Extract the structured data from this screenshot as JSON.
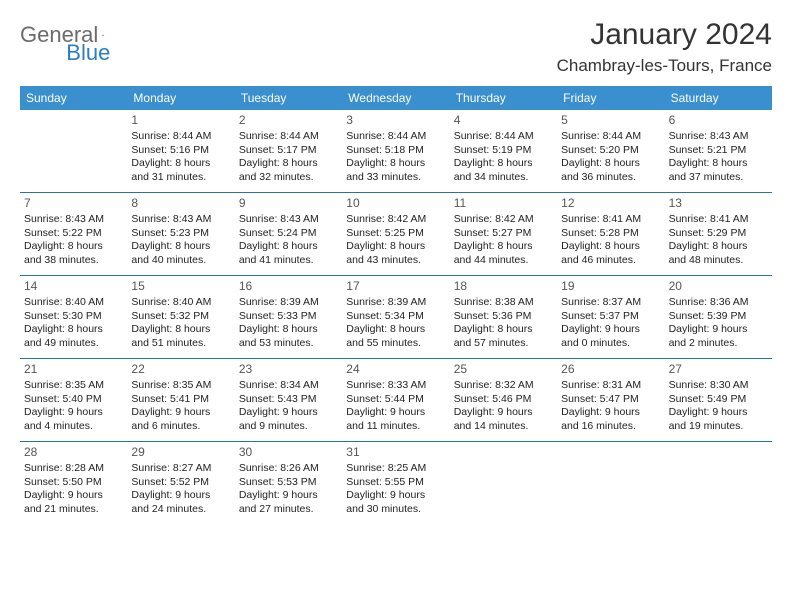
{
  "brand": {
    "part1": "General",
    "part2": "Blue"
  },
  "title": "January 2024",
  "location": "Chambray-les-Tours, France",
  "colors": {
    "header_bg": "#3a8fce",
    "brand_gray": "#6b6b6b",
    "brand_blue": "#2b7dc4",
    "week_border": "#2f6fa5"
  },
  "days_of_week": [
    "Sunday",
    "Monday",
    "Tuesday",
    "Wednesday",
    "Thursday",
    "Friday",
    "Saturday"
  ],
  "weeks": [
    [
      {
        "n": "",
        "sr": "",
        "ss": "",
        "d1": "",
        "d2": ""
      },
      {
        "n": "1",
        "sr": "Sunrise: 8:44 AM",
        "ss": "Sunset: 5:16 PM",
        "d1": "Daylight: 8 hours",
        "d2": "and 31 minutes."
      },
      {
        "n": "2",
        "sr": "Sunrise: 8:44 AM",
        "ss": "Sunset: 5:17 PM",
        "d1": "Daylight: 8 hours",
        "d2": "and 32 minutes."
      },
      {
        "n": "3",
        "sr": "Sunrise: 8:44 AM",
        "ss": "Sunset: 5:18 PM",
        "d1": "Daylight: 8 hours",
        "d2": "and 33 minutes."
      },
      {
        "n": "4",
        "sr": "Sunrise: 8:44 AM",
        "ss": "Sunset: 5:19 PM",
        "d1": "Daylight: 8 hours",
        "d2": "and 34 minutes."
      },
      {
        "n": "5",
        "sr": "Sunrise: 8:44 AM",
        "ss": "Sunset: 5:20 PM",
        "d1": "Daylight: 8 hours",
        "d2": "and 36 minutes."
      },
      {
        "n": "6",
        "sr": "Sunrise: 8:43 AM",
        "ss": "Sunset: 5:21 PM",
        "d1": "Daylight: 8 hours",
        "d2": "and 37 minutes."
      }
    ],
    [
      {
        "n": "7",
        "sr": "Sunrise: 8:43 AM",
        "ss": "Sunset: 5:22 PM",
        "d1": "Daylight: 8 hours",
        "d2": "and 38 minutes."
      },
      {
        "n": "8",
        "sr": "Sunrise: 8:43 AM",
        "ss": "Sunset: 5:23 PM",
        "d1": "Daylight: 8 hours",
        "d2": "and 40 minutes."
      },
      {
        "n": "9",
        "sr": "Sunrise: 8:43 AM",
        "ss": "Sunset: 5:24 PM",
        "d1": "Daylight: 8 hours",
        "d2": "and 41 minutes."
      },
      {
        "n": "10",
        "sr": "Sunrise: 8:42 AM",
        "ss": "Sunset: 5:25 PM",
        "d1": "Daylight: 8 hours",
        "d2": "and 43 minutes."
      },
      {
        "n": "11",
        "sr": "Sunrise: 8:42 AM",
        "ss": "Sunset: 5:27 PM",
        "d1": "Daylight: 8 hours",
        "d2": "and 44 minutes."
      },
      {
        "n": "12",
        "sr": "Sunrise: 8:41 AM",
        "ss": "Sunset: 5:28 PM",
        "d1": "Daylight: 8 hours",
        "d2": "and 46 minutes."
      },
      {
        "n": "13",
        "sr": "Sunrise: 8:41 AM",
        "ss": "Sunset: 5:29 PM",
        "d1": "Daylight: 8 hours",
        "d2": "and 48 minutes."
      }
    ],
    [
      {
        "n": "14",
        "sr": "Sunrise: 8:40 AM",
        "ss": "Sunset: 5:30 PM",
        "d1": "Daylight: 8 hours",
        "d2": "and 49 minutes."
      },
      {
        "n": "15",
        "sr": "Sunrise: 8:40 AM",
        "ss": "Sunset: 5:32 PM",
        "d1": "Daylight: 8 hours",
        "d2": "and 51 minutes."
      },
      {
        "n": "16",
        "sr": "Sunrise: 8:39 AM",
        "ss": "Sunset: 5:33 PM",
        "d1": "Daylight: 8 hours",
        "d2": "and 53 minutes."
      },
      {
        "n": "17",
        "sr": "Sunrise: 8:39 AM",
        "ss": "Sunset: 5:34 PM",
        "d1": "Daylight: 8 hours",
        "d2": "and 55 minutes."
      },
      {
        "n": "18",
        "sr": "Sunrise: 8:38 AM",
        "ss": "Sunset: 5:36 PM",
        "d1": "Daylight: 8 hours",
        "d2": "and 57 minutes."
      },
      {
        "n": "19",
        "sr": "Sunrise: 8:37 AM",
        "ss": "Sunset: 5:37 PM",
        "d1": "Daylight: 9 hours",
        "d2": "and 0 minutes."
      },
      {
        "n": "20",
        "sr": "Sunrise: 8:36 AM",
        "ss": "Sunset: 5:39 PM",
        "d1": "Daylight: 9 hours",
        "d2": "and 2 minutes."
      }
    ],
    [
      {
        "n": "21",
        "sr": "Sunrise: 8:35 AM",
        "ss": "Sunset: 5:40 PM",
        "d1": "Daylight: 9 hours",
        "d2": "and 4 minutes."
      },
      {
        "n": "22",
        "sr": "Sunrise: 8:35 AM",
        "ss": "Sunset: 5:41 PM",
        "d1": "Daylight: 9 hours",
        "d2": "and 6 minutes."
      },
      {
        "n": "23",
        "sr": "Sunrise: 8:34 AM",
        "ss": "Sunset: 5:43 PM",
        "d1": "Daylight: 9 hours",
        "d2": "and 9 minutes."
      },
      {
        "n": "24",
        "sr": "Sunrise: 8:33 AM",
        "ss": "Sunset: 5:44 PM",
        "d1": "Daylight: 9 hours",
        "d2": "and 11 minutes."
      },
      {
        "n": "25",
        "sr": "Sunrise: 8:32 AM",
        "ss": "Sunset: 5:46 PM",
        "d1": "Daylight: 9 hours",
        "d2": "and 14 minutes."
      },
      {
        "n": "26",
        "sr": "Sunrise: 8:31 AM",
        "ss": "Sunset: 5:47 PM",
        "d1": "Daylight: 9 hours",
        "d2": "and 16 minutes."
      },
      {
        "n": "27",
        "sr": "Sunrise: 8:30 AM",
        "ss": "Sunset: 5:49 PM",
        "d1": "Daylight: 9 hours",
        "d2": "and 19 minutes."
      }
    ],
    [
      {
        "n": "28",
        "sr": "Sunrise: 8:28 AM",
        "ss": "Sunset: 5:50 PM",
        "d1": "Daylight: 9 hours",
        "d2": "and 21 minutes."
      },
      {
        "n": "29",
        "sr": "Sunrise: 8:27 AM",
        "ss": "Sunset: 5:52 PM",
        "d1": "Daylight: 9 hours",
        "d2": "and 24 minutes."
      },
      {
        "n": "30",
        "sr": "Sunrise: 8:26 AM",
        "ss": "Sunset: 5:53 PM",
        "d1": "Daylight: 9 hours",
        "d2": "and 27 minutes."
      },
      {
        "n": "31",
        "sr": "Sunrise: 8:25 AM",
        "ss": "Sunset: 5:55 PM",
        "d1": "Daylight: 9 hours",
        "d2": "and 30 minutes."
      },
      {
        "n": "",
        "sr": "",
        "ss": "",
        "d1": "",
        "d2": ""
      },
      {
        "n": "",
        "sr": "",
        "ss": "",
        "d1": "",
        "d2": ""
      },
      {
        "n": "",
        "sr": "",
        "ss": "",
        "d1": "",
        "d2": ""
      }
    ]
  ]
}
